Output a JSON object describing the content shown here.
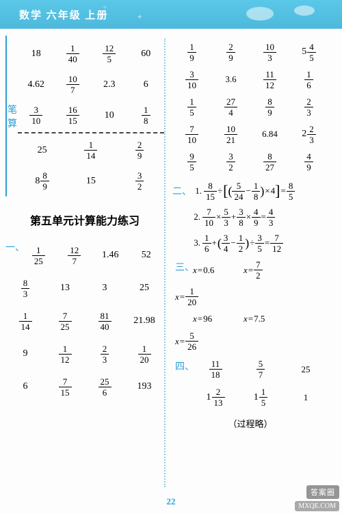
{
  "header": {
    "title": "数学 六年级 上册"
  },
  "left": {
    "bisuan_label": "笔算",
    "top_grid": [
      [
        {
          "t": "int",
          "v": "18"
        },
        {
          "t": "frac",
          "n": "1",
          "d": "40"
        },
        {
          "t": "frac",
          "n": "12",
          "d": "5"
        },
        {
          "t": "int",
          "v": "60"
        }
      ],
      [
        {
          "t": "int",
          "v": "4.62"
        },
        {
          "t": "frac",
          "n": "10",
          "d": "7"
        },
        {
          "t": "int",
          "v": "2.3"
        },
        {
          "t": "int",
          "v": "6"
        }
      ],
      [
        {
          "t": "frac",
          "n": "3",
          "d": "10"
        },
        {
          "t": "frac",
          "n": "16",
          "d": "15"
        },
        {
          "t": "int",
          "v": "10"
        },
        {
          "t": "frac",
          "n": "1",
          "d": "8"
        }
      ]
    ],
    "bisuan_grid": [
      [
        {
          "t": "int",
          "v": "25"
        },
        {
          "t": "frac",
          "n": "1",
          "d": "14"
        },
        {
          "t": "frac",
          "n": "2",
          "d": "9"
        }
      ],
      [
        {
          "t": "mixed",
          "w": "8",
          "n": "8",
          "d": "9"
        },
        {
          "t": "int",
          "v": "15"
        },
        {
          "t": "frac",
          "n": "3",
          "d": "2"
        }
      ]
    ],
    "unit_title": "第五单元计算能力练习",
    "section_one_label": "一、",
    "one_grid": [
      [
        {
          "t": "frac",
          "n": "1",
          "d": "25"
        },
        {
          "t": "frac",
          "n": "12",
          "d": "7"
        },
        {
          "t": "int",
          "v": "1.46"
        },
        {
          "t": "int",
          "v": "52"
        }
      ],
      [
        {
          "t": "frac",
          "n": "8",
          "d": "3"
        },
        {
          "t": "int",
          "v": "13"
        },
        {
          "t": "int",
          "v": "3"
        },
        {
          "t": "int",
          "v": "25"
        }
      ],
      [
        {
          "t": "frac",
          "n": "1",
          "d": "14"
        },
        {
          "t": "frac",
          "n": "7",
          "d": "25"
        },
        {
          "t": "frac",
          "n": "81",
          "d": "40"
        },
        {
          "t": "int",
          "v": "21.98"
        }
      ],
      [
        {
          "t": "int",
          "v": "9"
        },
        {
          "t": "frac",
          "n": "1",
          "d": "12"
        },
        {
          "t": "frac",
          "n": "2",
          "d": "3"
        },
        {
          "t": "frac",
          "n": "1",
          "d": "20"
        }
      ],
      [
        {
          "t": "int",
          "v": "6"
        },
        {
          "t": "frac",
          "n": "7",
          "d": "15"
        },
        {
          "t": "frac",
          "n": "25",
          "d": "6"
        },
        {
          "t": "int",
          "v": "193"
        }
      ]
    ]
  },
  "right": {
    "top_grid": [
      [
        {
          "t": "frac",
          "n": "1",
          "d": "9"
        },
        {
          "t": "frac",
          "n": "2",
          "d": "9"
        },
        {
          "t": "frac",
          "n": "10",
          "d": "3"
        },
        {
          "t": "mixed",
          "w": "5",
          "n": "4",
          "d": "5"
        }
      ],
      [
        {
          "t": "frac",
          "n": "3",
          "d": "10"
        },
        {
          "t": "int",
          "v": "3.6"
        },
        {
          "t": "frac",
          "n": "11",
          "d": "12"
        },
        {
          "t": "frac",
          "n": "1",
          "d": "6"
        }
      ],
      [
        {
          "t": "frac",
          "n": "1",
          "d": "5"
        },
        {
          "t": "frac",
          "n": "27",
          "d": "4"
        },
        {
          "t": "frac",
          "n": "8",
          "d": "9"
        },
        {
          "t": "frac",
          "n": "2",
          "d": "3"
        }
      ],
      [
        {
          "t": "frac",
          "n": "7",
          "d": "10"
        },
        {
          "t": "frac",
          "n": "10",
          "d": "21"
        },
        {
          "t": "int",
          "v": "6.84"
        },
        {
          "t": "mixed",
          "w": "2",
          "n": "2",
          "d": "3"
        }
      ],
      [
        {
          "t": "frac",
          "n": "9",
          "d": "5"
        },
        {
          "t": "frac",
          "n": "3",
          "d": "2"
        },
        {
          "t": "frac",
          "n": "8",
          "d": "27"
        },
        {
          "t": "frac",
          "n": "4",
          "d": "9"
        }
      ]
    ],
    "section_two_label": "二、",
    "eq2": [
      {
        "num": "1.",
        "parts": [
          {
            "t": "frac",
            "n": "8",
            "d": "15"
          },
          {
            "t": "op",
            "v": "÷"
          },
          {
            "t": "lbkt"
          },
          {
            "t": "lparen"
          },
          {
            "t": "frac",
            "n": "5",
            "d": "24"
          },
          {
            "t": "op",
            "v": "−"
          },
          {
            "t": "frac",
            "n": "1",
            "d": "8"
          },
          {
            "t": "rparen"
          },
          {
            "t": "op",
            "v": "×"
          },
          {
            "t": "int",
            "v": "4"
          },
          {
            "t": "rbkt"
          },
          {
            "t": "op",
            "v": "="
          },
          {
            "t": "frac",
            "n": "8",
            "d": "5"
          }
        ]
      },
      {
        "num": "2.",
        "parts": [
          {
            "t": "frac",
            "n": "7",
            "d": "10"
          },
          {
            "t": "op",
            "v": "×"
          },
          {
            "t": "frac",
            "n": "5",
            "d": "3"
          },
          {
            "t": "op",
            "v": "+"
          },
          {
            "t": "frac",
            "n": "3",
            "d": "8"
          },
          {
            "t": "op",
            "v": "×"
          },
          {
            "t": "frac",
            "n": "4",
            "d": "9"
          },
          {
            "t": "op",
            "v": "="
          },
          {
            "t": "frac",
            "n": "4",
            "d": "3"
          }
        ]
      },
      {
        "num": "3.",
        "parts": [
          {
            "t": "frac",
            "n": "1",
            "d": "6"
          },
          {
            "t": "op",
            "v": "+"
          },
          {
            "t": "lparen"
          },
          {
            "t": "frac",
            "n": "3",
            "d": "4"
          },
          {
            "t": "op",
            "v": "−"
          },
          {
            "t": "frac",
            "n": "1",
            "d": "2"
          },
          {
            "t": "rparen"
          },
          {
            "t": "op",
            "v": "÷"
          },
          {
            "t": "frac",
            "n": "3",
            "d": "5"
          },
          {
            "t": "op",
            "v": "="
          },
          {
            "t": "frac",
            "n": "7",
            "d": "12"
          }
        ]
      }
    ],
    "section_three_label": "三、",
    "three": [
      {
        "lhs": "x",
        "rhs": {
          "t": "int",
          "v": "0.6"
        }
      },
      {
        "lhs": "x",
        "rhs": {
          "t": "frac",
          "n": "7",
          "d": "2"
        }
      },
      {
        "lhs": "x",
        "rhs": {
          "t": "frac",
          "n": "1",
          "d": "20"
        }
      },
      {
        "lhs": "x",
        "rhs": {
          "t": "int",
          "v": "96"
        }
      },
      {
        "lhs": "x",
        "rhs": {
          "t": "int",
          "v": "7.5"
        }
      },
      {
        "lhs": "x",
        "rhs": {
          "t": "frac",
          "n": "5",
          "d": "26"
        }
      }
    ],
    "section_four_label": "四、",
    "four": [
      [
        {
          "t": "frac",
          "n": "11",
          "d": "18"
        },
        {
          "t": "frac",
          "n": "5",
          "d": "7"
        },
        {
          "t": "int",
          "v": "25"
        }
      ],
      [
        {
          "t": "mixed",
          "w": "1",
          "n": "2",
          "d": "13"
        },
        {
          "t": "mixed",
          "w": "1",
          "n": "1",
          "d": "5"
        },
        {
          "t": "int",
          "v": "1"
        }
      ]
    ],
    "note": "（过程略）"
  },
  "page_number": "22",
  "watermark_top": "答案圈",
  "watermark_bottom": "MXQE.COM"
}
